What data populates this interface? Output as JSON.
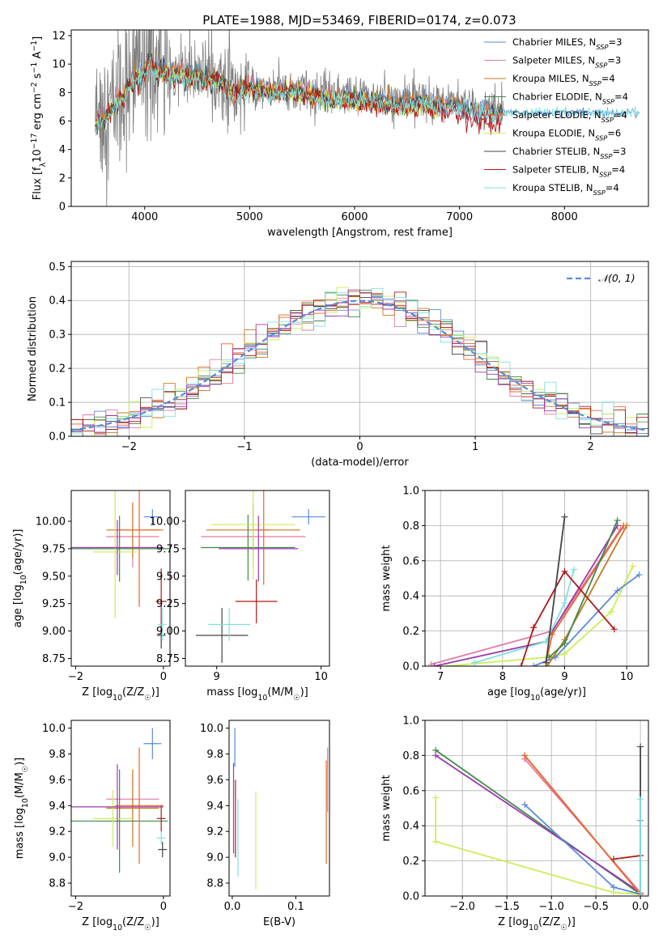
{
  "title": "PLATE=1988, MJD=53469, FIBERID=0174, z=0.073",
  "colors": {
    "chabrier_miles": "#5b8ad6",
    "salpeter_miles": "#e47aa8",
    "kroupa_miles": "#c9771f",
    "chabrier_elodie": "#3f8a4a",
    "salpeter_elodie": "#e8652a",
    "kroupa_elodie": "#c9ee55",
    "chabrier_stelib": "#444444",
    "salpeter_stelib": "#b01818",
    "kroupa_stelib": "#7fe0e0",
    "purple_track": "#9b3ab0",
    "data": "#808080"
  },
  "chart_data": [
    {
      "type": "line",
      "xlabel": "wavelength [Angstrom, rest frame]",
      "ylabel": "Flux [fλ10⁻¹⁷ erg cm⁻² s⁻¹ A⁻¹]",
      "xlim": [
        3300,
        8800
      ],
      "ylim": [
        0,
        12.4
      ],
      "xticks": [
        4000,
        5000,
        6000,
        7000,
        8000
      ],
      "yticks": [
        0,
        2,
        4,
        6,
        8,
        10,
        12
      ],
      "legend_position": "top-right",
      "legend": [
        {
          "name": "Chabrier MILES, N",
          "sub": "SSP",
          "n": "=3",
          "color_key": "chabrier_miles"
        },
        {
          "name": "Salpeter MILES, N",
          "sub": "SSP",
          "n": "=3",
          "color_key": "salpeter_miles"
        },
        {
          "name": "Kroupa MILES, N",
          "sub": "SSP",
          "n": "=4",
          "color_key": "kroupa_miles"
        },
        {
          "name": "Chabrier ELODIE, N",
          "sub": "SSP",
          "n": "=4",
          "color_key": "chabrier_elodie"
        },
        {
          "name": "Salpeter ELODIE, N",
          "sub": "SSP",
          "n": "=4",
          "color_key": "salpeter_elodie"
        },
        {
          "name": "Kroupa ELODIE, N",
          "sub": "SSP",
          "n": "=6",
          "color_key": "kroupa_elodie"
        },
        {
          "name": "Chabrier STELIB, N",
          "sub": "SSP",
          "n": "=3",
          "color_key": "chabrier_stelib"
        },
        {
          "name": "Salpeter STELIB, N",
          "sub": "SSP",
          "n": "=4",
          "color_key": "salpeter_stelib"
        },
        {
          "name": "Kroupa STELIB, N",
          "sub": "SSP",
          "n": "=4",
          "color_key": "kroupa_stelib"
        }
      ],
      "continuum": {
        "x": [
          3530,
          3600,
          3700,
          3800,
          3900,
          4000,
          4050,
          4100,
          4300,
          4500,
          4700,
          4860,
          5000,
          5200,
          5400,
          5600,
          5800,
          6000,
          6200,
          6400,
          6600,
          6800,
          7000,
          7200,
          7400
        ],
        "y": [
          6.0,
          6.3,
          7.0,
          8.0,
          9.0,
          9.6,
          10.5,
          9.6,
          9.4,
          9.2,
          9.0,
          8.0,
          8.5,
          8.2,
          8.3,
          8.0,
          7.8,
          7.8,
          7.6,
          7.4,
          7.6,
          7.4,
          7.2,
          6.8,
          6.8
        ]
      }
    },
    {
      "type": "line",
      "xlabel": "(data-model)/error",
      "ylabel": "Normed distribution",
      "xlim": [
        -2.5,
        2.5
      ],
      "ylim": [
        0,
        0.515
      ],
      "xticks": [
        -2,
        -1,
        0,
        1,
        2
      ],
      "yticks": [
        0.0,
        0.1,
        0.2,
        0.3,
        0.4,
        0.5
      ],
      "legend_position": "top-right",
      "legend_label": "𝒩(0, 1)",
      "gaussian": {
        "mu": 0,
        "sigma": 1
      }
    },
    {
      "type": "scatter",
      "xlabel": "Z [log10(Z/Z☉)]",
      "ylabel": "age  [log10(age/yr)]",
      "xlim": [
        -2.1,
        0.15
      ],
      "ylim": [
        8.68,
        10.28
      ],
      "xticks": [
        -2,
        0
      ],
      "yticks": [
        8.75,
        9.0,
        9.25,
        9.5,
        9.75,
        10.0
      ],
      "points": [
        {
          "color_key": "chabrier_miles",
          "x": -0.25,
          "xerr": 0.2,
          "y": 10.04,
          "yerr": 0.07
        },
        {
          "color_key": "salpeter_miles",
          "x": -0.7,
          "xerr": 0.6,
          "y": 9.86,
          "yerr": 0.28
        },
        {
          "color_key": "kroupa_miles",
          "x": -0.7,
          "xerr": 0.6,
          "y": 9.92,
          "yerr": 0.25
        },
        {
          "color_key": "chabrier_elodie",
          "x": -1.0,
          "xerr": 1.3,
          "y": 9.75,
          "yerr": 0.3
        },
        {
          "color_key": "salpeter_elodie",
          "x": -0.55,
          "xerr": 0.55,
          "y": 9.92,
          "yerr": 0.7
        },
        {
          "color_key": "kroupa_elodie",
          "x": -1.1,
          "xerr": 0.5,
          "y": 9.72,
          "yerr": 0.6
        },
        {
          "color_key": "chabrier_stelib",
          "x": -0.05,
          "xerr": 0.1,
          "y": 8.96,
          "yerr": 0.12
        },
        {
          "color_key": "salpeter_stelib",
          "x": -0.05,
          "xerr": 0.12,
          "y": 9.27,
          "yerr": 0.3
        },
        {
          "color_key": "kroupa_stelib",
          "x": -0.03,
          "xerr": 0.1,
          "y": 9.06,
          "yerr": 0.15
        },
        {
          "color_key": "purple_track",
          "x": -1.05,
          "xerr": 1.05,
          "y": 9.76,
          "yerr": 0.25
        }
      ]
    },
    {
      "type": "scatter",
      "xlabel": "mass [log10(M/M☉)]",
      "ylabel": "",
      "xlim": [
        8.7,
        10.08
      ],
      "ylim": [
        8.68,
        10.28
      ],
      "xticks": [
        9,
        10
      ],
      "yticks": [
        8.75,
        9.0,
        9.25,
        9.5,
        9.75,
        10.0
      ],
      "points": [
        {
          "color_key": "chabrier_miles",
          "x": 9.88,
          "xerr": 0.16,
          "y": 10.04,
          "yerr": 0.07
        },
        {
          "color_key": "salpeter_miles",
          "x": 9.35,
          "xerr": 0.5,
          "y": 9.86,
          "yerr": 0.28
        },
        {
          "color_key": "kroupa_miles",
          "x": 9.35,
          "xerr": 0.45,
          "y": 9.92,
          "yerr": 0.25
        },
        {
          "color_key": "chabrier_elodie",
          "x": 9.3,
          "xerr": 0.45,
          "y": 9.76,
          "yerr": 0.3
        },
        {
          "color_key": "salpeter_elodie",
          "x": 9.45,
          "xerr": 0.05,
          "y": 9.92,
          "yerr": 0.5
        },
        {
          "color_key": "kroupa_elodie",
          "x": 9.35,
          "xerr": 0.4,
          "y": 9.97,
          "yerr": 0.5
        },
        {
          "color_key": "chabrier_stelib",
          "x": 9.05,
          "xerr": 0.25,
          "y": 8.96,
          "yerr": 0.25
        },
        {
          "color_key": "salpeter_stelib",
          "x": 9.38,
          "xerr": 0.2,
          "y": 9.27,
          "yerr": 0.2
        },
        {
          "color_key": "kroupa_stelib",
          "x": 9.12,
          "xerr": 0.2,
          "y": 9.06,
          "yerr": 0.15
        },
        {
          "color_key": "purple_track",
          "x": 9.4,
          "xerr": 0.38,
          "y": 9.75,
          "yerr": 0.3
        }
      ]
    },
    {
      "type": "line",
      "xlabel": "age  [log10(age/yr)]",
      "ylabel": "mass weight",
      "xlim": [
        6.75,
        10.35
      ],
      "ylim": [
        0,
        1
      ],
      "xticks": [
        7,
        8,
        9,
        10
      ],
      "yticks": [
        0.0,
        0.2,
        0.4,
        0.6,
        0.8,
        1.0
      ],
      "series": [
        {
          "color_key": "kroupa_elodie",
          "x": [
            7.1,
            8.7,
            9.0,
            9.75,
            10.1
          ],
          "y": [
            0.0,
            0.05,
            0.07,
            0.31,
            0.57
          ]
        },
        {
          "color_key": "salpeter_miles",
          "x": [
            6.85,
            8.8,
            9.9
          ],
          "y": [
            0.01,
            0.2,
            0.78
          ]
        },
        {
          "color_key": "purple_track",
          "x": [
            6.9,
            8.7,
            9.85
          ],
          "y": [
            0.0,
            0.14,
            0.8
          ]
        },
        {
          "color_key": "chabrier_miles",
          "x": [
            8.5,
            8.85,
            9.85,
            10.2
          ],
          "y": [
            0.0,
            0.05,
            0.43,
            0.52
          ]
        },
        {
          "color_key": "salpeter_elodie",
          "x": [
            8.7,
            8.8,
            9.95
          ],
          "y": [
            0.02,
            0.18,
            0.8
          ]
        },
        {
          "color_key": "kroupa_miles",
          "x": [
            8.72,
            9.0,
            10.0
          ],
          "y": [
            0.0,
            0.15,
            0.8
          ]
        },
        {
          "color_key": "chabrier_elodie",
          "x": [
            8.75,
            9.0,
            9.85
          ],
          "y": [
            0.05,
            0.13,
            0.83
          ]
        },
        {
          "color_key": "kroupa_stelib",
          "x": [
            7.55,
            8.7,
            9.0,
            9.15
          ],
          "y": [
            0.02,
            0.14,
            0.36,
            0.55
          ]
        },
        {
          "color_key": "salpeter_stelib",
          "x": [
            8.3,
            8.5,
            9.0,
            9.8
          ],
          "y": [
            0.0,
            0.22,
            0.54,
            0.21
          ]
        },
        {
          "color_key": "chabrier_stelib",
          "x": [
            8.7,
            9.0
          ],
          "y": [
            0.02,
            0.85
          ]
        }
      ]
    },
    {
      "type": "scatter",
      "xlabel": "Z [log10(Z/Z☉)]",
      "ylabel": "mass [log10(M/M☉)]",
      "xlim": [
        -2.1,
        0.15
      ],
      "ylim": [
        8.7,
        10.06
      ],
      "xticks": [
        -2,
        0
      ],
      "yticks": [
        8.8,
        9.0,
        9.2,
        9.4,
        9.6,
        9.8,
        10.0
      ],
      "points": [
        {
          "color_key": "chabrier_miles",
          "x": -0.25,
          "xerr": 0.2,
          "y": 9.88,
          "yerr": 0.12
        },
        {
          "color_key": "salpeter_miles",
          "x": -0.7,
          "xerr": 0.6,
          "y": 9.45,
          "yerr": 0.2
        },
        {
          "color_key": "kroupa_miles",
          "x": -0.7,
          "xerr": 0.6,
          "y": 9.38,
          "yerr": 0.3
        },
        {
          "color_key": "chabrier_elodie",
          "x": -1.0,
          "xerr": 1.1,
          "y": 9.28,
          "yerr": 0.4
        },
        {
          "color_key": "salpeter_elodie",
          "x": -0.55,
          "xerr": 0.55,
          "y": 9.4,
          "yerr": 0.45
        },
        {
          "color_key": "kroupa_elodie",
          "x": -1.15,
          "xerr": 0.45,
          "y": 9.3,
          "yerr": 0.22
        },
        {
          "color_key": "chabrier_stelib",
          "x": -0.02,
          "xerr": 0.1,
          "y": 9.06,
          "yerr": 0.06
        },
        {
          "color_key": "salpeter_stelib",
          "x": -0.05,
          "xerr": 0.1,
          "y": 9.3,
          "yerr": 0.1
        },
        {
          "color_key": "kroupa_stelib",
          "x": -0.05,
          "xerr": 0.1,
          "y": 9.15,
          "yerr": 0.05
        },
        {
          "color_key": "purple_track",
          "x": -1.05,
          "xerr": 1.05,
          "y": 9.39,
          "yerr": 0.33
        }
      ]
    },
    {
      "type": "scatter",
      "xlabel": "E(B-V)",
      "ylabel": "",
      "xlim": [
        -0.005,
        0.153
      ],
      "ylim": [
        8.7,
        10.06
      ],
      "xticks": [
        0.0,
        0.1
      ],
      "yticks": [
        8.8,
        9.0,
        9.2,
        9.4,
        9.6,
        9.8,
        10.0
      ],
      "points": [
        {
          "color_key": "chabrier_miles",
          "x": 0.004,
          "xerr": 0,
          "y": 9.85,
          "yerr": 0.15
        },
        {
          "color_key": "purple_track",
          "x": 0.002,
          "xerr": 0,
          "y": 9.38,
          "yerr": 0.35
        },
        {
          "color_key": "salpeter_stelib",
          "x": 0.005,
          "xerr": 0,
          "y": 9.3,
          "yerr": 0.3
        },
        {
          "color_key": "kroupa_stelib",
          "x": 0.009,
          "xerr": 0,
          "y": 9.15,
          "yerr": 0.3
        },
        {
          "color_key": "kroupa_elodie",
          "x": 0.037,
          "xerr": 0,
          "y": 9.13,
          "yerr": 0.38
        },
        {
          "color_key": "salpeter_elodie",
          "x": 0.148,
          "xerr": 0,
          "y": 9.35,
          "yerr": 0.4
        },
        {
          "color_key": "salpeter_miles",
          "x": 0.15,
          "xerr": 0,
          "y": 9.6,
          "yerr": 0.25
        }
      ]
    },
    {
      "type": "line",
      "xlabel": "Z [log10(Z/Z☉)]",
      "ylabel": "mass weight",
      "xlim": [
        -2.42,
        0.09
      ],
      "ylim": [
        0,
        1
      ],
      "xticks": [
        -2.0,
        -1.5,
        -1.0,
        -0.5,
        0.0
      ],
      "yticks": [
        0.0,
        0.2,
        0.4,
        0.6,
        0.8,
        1.0
      ],
      "series": [
        {
          "color_key": "chabrier_elodie",
          "x": [
            -2.3,
            0.0
          ],
          "y": [
            0.83,
            0.01
          ]
        },
        {
          "color_key": "purple_track",
          "x": [
            -2.3,
            0.0
          ],
          "y": [
            0.8,
            0.02
          ]
        },
        {
          "color_key": "kroupa_elodie",
          "x": [
            -2.3,
            -2.3,
            -0.3,
            0.0
          ],
          "y": [
            0.56,
            0.31,
            0.02,
            0.01
          ]
        },
        {
          "color_key": "chabrier_miles",
          "x": [
            -1.3,
            -0.3,
            0.0,
            0.0
          ],
          "y": [
            0.52,
            0.05,
            0.01,
            0.43
          ]
        },
        {
          "color_key": "kroupa_miles",
          "x": [
            -1.3,
            0.0
          ],
          "y": [
            0.8,
            0.01
          ]
        },
        {
          "color_key": "salpeter_miles",
          "x": [
            -1.3,
            0.0
          ],
          "y": [
            0.78,
            0.02
          ]
        },
        {
          "color_key": "salpeter_elodie",
          "x": [
            -1.3,
            0.0
          ],
          "y": [
            0.8,
            0.01
          ]
        },
        {
          "color_key": "salpeter_stelib",
          "x": [
            -0.3,
            0.0
          ],
          "y": [
            0.21,
            0.23
          ]
        },
        {
          "color_key": "chabrier_stelib",
          "x": [
            0.0,
            0.0
          ],
          "y": [
            0.02,
            0.85
          ]
        },
        {
          "color_key": "kroupa_stelib",
          "x": [
            0.0,
            0.0
          ],
          "y": [
            0.02,
            0.55
          ]
        }
      ]
    }
  ]
}
